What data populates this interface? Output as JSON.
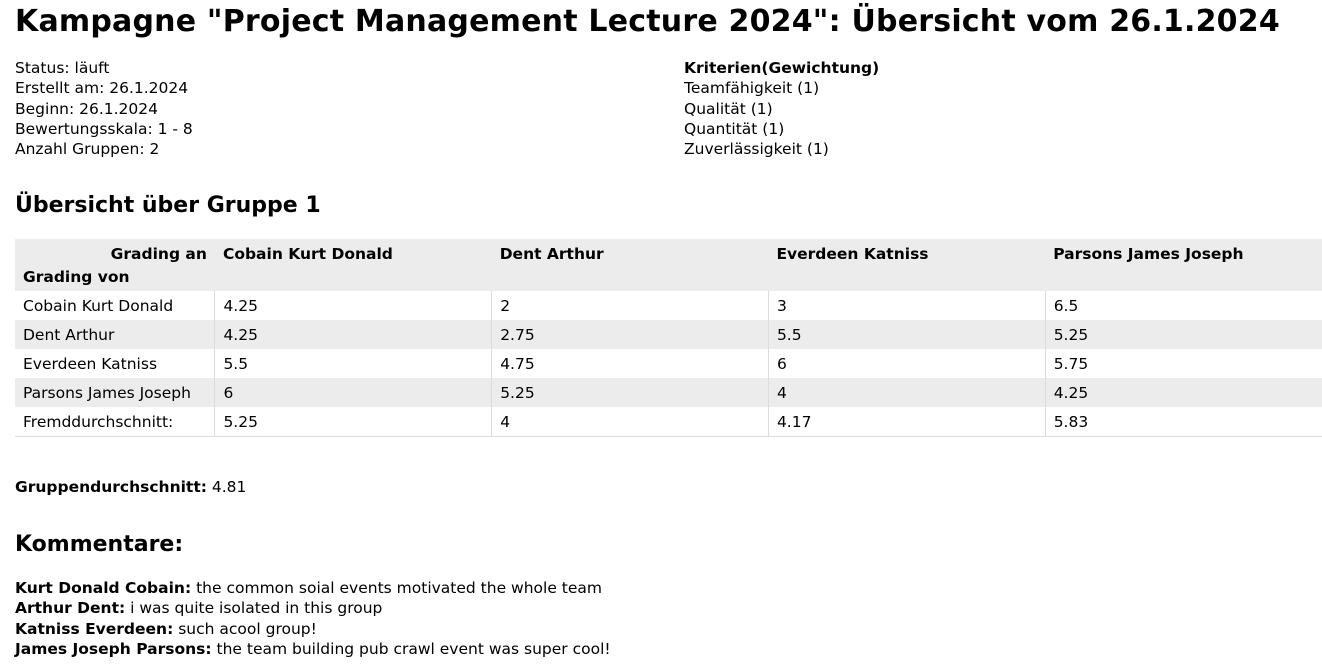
{
  "title": "Kampagne \"Project Management Lecture 2024\": Übersicht vom 26.1.2024",
  "info": {
    "status": "Status: läuft",
    "created": "Erstellt am: 26.1.2024",
    "start": "Beginn: 26.1.2024",
    "scale": "Bewertungsskala: 1 - 8",
    "groups": "Anzahl Gruppen: 2"
  },
  "criteria": {
    "heading": "Kriterien(Gewichtung)",
    "items": [
      "Teamfähigkeit (1)",
      "Qualität (1)",
      "Quantität (1)",
      "Zuverlässigkeit (1)"
    ]
  },
  "group_section": {
    "title": "Übersicht über Gruppe 1",
    "grading_to": "Grading an",
    "grading_from": "Grading von",
    "columns": [
      "Cobain Kurt Donald",
      "Dent Arthur",
      "Everdeen Katniss",
      "Parsons James Joseph"
    ],
    "rows": [
      {
        "name": "Cobain Kurt Donald",
        "values": [
          "4.25",
          "2",
          "3",
          "6.5"
        ]
      },
      {
        "name": "Dent Arthur",
        "values": [
          "4.25",
          "2.75",
          "5.5",
          "5.25"
        ]
      },
      {
        "name": "Everdeen Katniss",
        "values": [
          "5.5",
          "4.75",
          "6",
          "5.75"
        ]
      },
      {
        "name": "Parsons James Joseph",
        "values": [
          "6",
          "5.25",
          "4",
          "4.25"
        ]
      },
      {
        "name": "Fremddurchschnitt:",
        "values": [
          "5.25",
          "4",
          "4.17",
          "5.83"
        ]
      }
    ],
    "group_avg_label": "Gruppendurchschnitt:",
    "group_avg_value": "4.81"
  },
  "comments": {
    "title": "Kommentare:",
    "items": [
      {
        "author": "Kurt Donald Cobain:",
        "text": "the common soial events motivated the whole team"
      },
      {
        "author": "Arthur Dent:",
        "text": "i was quite isolated in this group"
      },
      {
        "author": "Katniss Everdeen:",
        "text": "such acool group!"
      },
      {
        "author": "James Joseph Parsons:",
        "text": "the team building pub crawl event was super cool!"
      }
    ]
  }
}
